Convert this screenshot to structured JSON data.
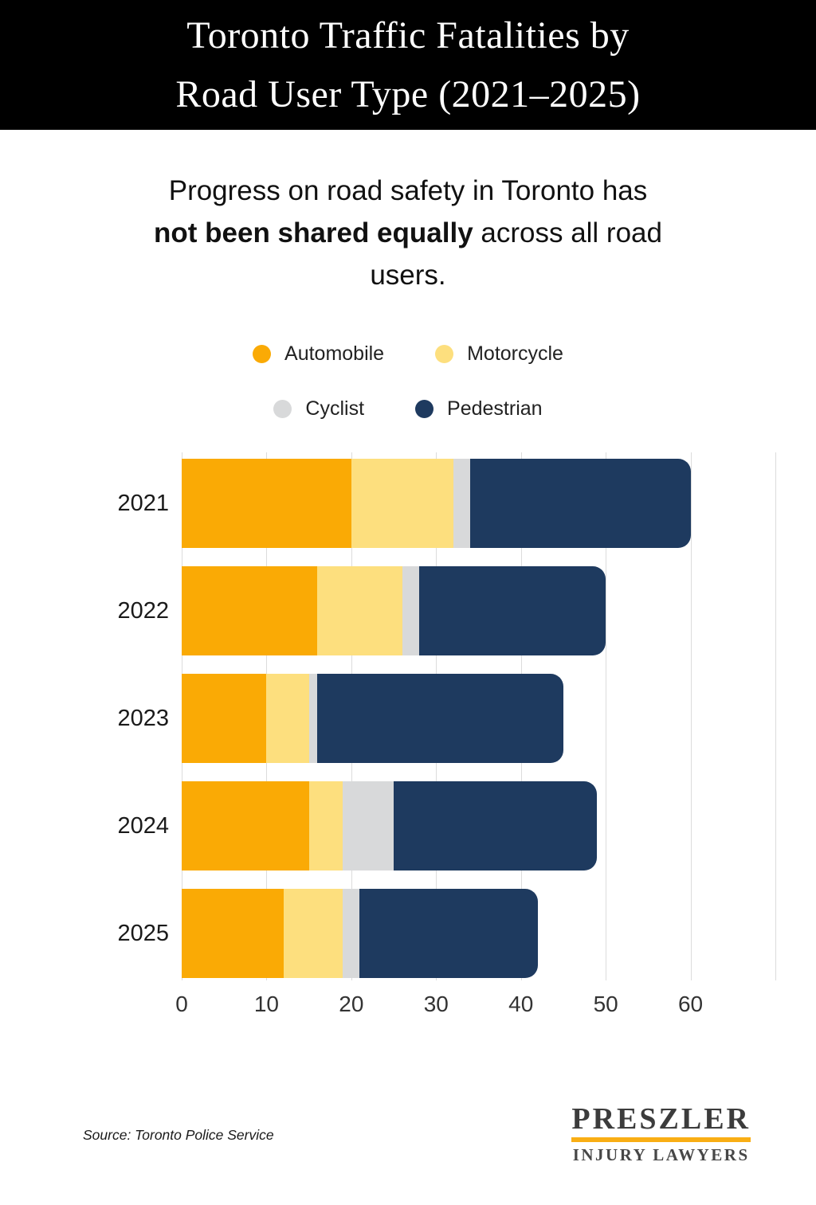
{
  "header": {
    "title_line1": "Toronto Traffic Fatalities by",
    "title_line2": "Road User Type (2021–2025)"
  },
  "subtitle": {
    "line1": "Progress on road safety in Toronto has",
    "line2_bold": "not been shared equally",
    "line2_rest": " across all road",
    "line3": "users."
  },
  "chart_data": {
    "type": "bar",
    "orientation": "horizontal",
    "stacked": true,
    "grid": true,
    "legend_position": "top",
    "categories": [
      "2021",
      "2022",
      "2023",
      "2024",
      "2025"
    ],
    "series": [
      {
        "name": "Automobile",
        "color": "#FAAA05",
        "values": [
          20,
          16,
          10,
          15,
          12
        ]
      },
      {
        "name": "Motorcycle",
        "color": "#FDDF7E",
        "values": [
          12,
          10,
          5,
          4,
          7
        ]
      },
      {
        "name": "Cyclist",
        "color": "#D8D9DA",
        "values": [
          2,
          2,
          1,
          6,
          2
        ]
      },
      {
        "name": "Pedestrian",
        "color": "#1E3A5F",
        "values": [
          26,
          22,
          29,
          24,
          21
        ]
      }
    ],
    "totals": [
      60,
      50,
      45,
      49,
      42
    ],
    "x_ticks": [
      0,
      10,
      20,
      30,
      40,
      50,
      60
    ],
    "xlim": [
      0,
      70
    ],
    "xlabel": "",
    "ylabel": ""
  },
  "footer": {
    "source": "Source: Toronto Police Service",
    "logo_line1": "PRESZLER",
    "logo_line2": "INJURY LAWYERS"
  },
  "colors": {
    "header_bg": "#000000",
    "title_text": "#FFFFFF",
    "gridline": "#DCDCDC",
    "logo_rule": "#F9AE14"
  }
}
